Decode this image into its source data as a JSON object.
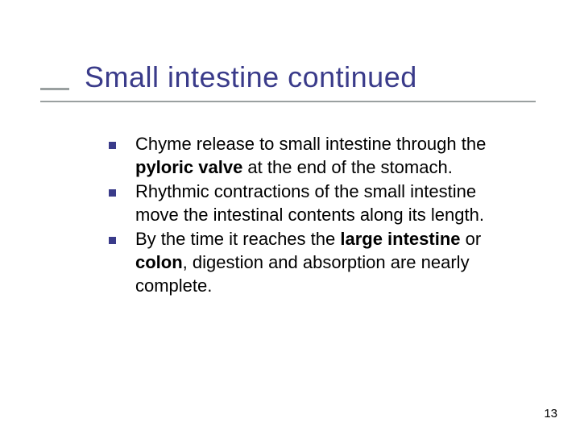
{
  "title": "Small intestine continued",
  "bullets": [
    {
      "pre": "Chyme release to small intestine through the ",
      "bold1": "pyloric valve",
      "mid1": " at the end of the stomach.",
      "bold2": "",
      "mid2": "",
      "bold3": "",
      "post": ""
    },
    {
      "pre": "Rhythmic contractions of the small intestine move the intestinal contents along its length.",
      "bold1": "",
      "mid1": "",
      "bold2": "",
      "mid2": "",
      "bold3": "",
      "post": ""
    },
    {
      "pre": "By the time it reaches the ",
      "bold1": "large intestine",
      "mid1": " or ",
      "bold2": "colon",
      "mid2": ", digestion and absorption are nearly complete.",
      "bold3": "",
      "post": ""
    }
  ],
  "pageNumber": "13",
  "colors": {
    "titleColor": "#3a3b8a",
    "bulletColor": "#3a3b8a",
    "underlineColor": "#9aa0a0",
    "textColor": "#000000",
    "background": "#ffffff"
  },
  "typography": {
    "titleFontSize": 36,
    "bodyFontSize": 22,
    "pageNumFontSize": 15,
    "fontFamily": "Verdana"
  },
  "layout": {
    "bulletSize": 9,
    "slideWidth": 720,
    "slideHeight": 540
  }
}
